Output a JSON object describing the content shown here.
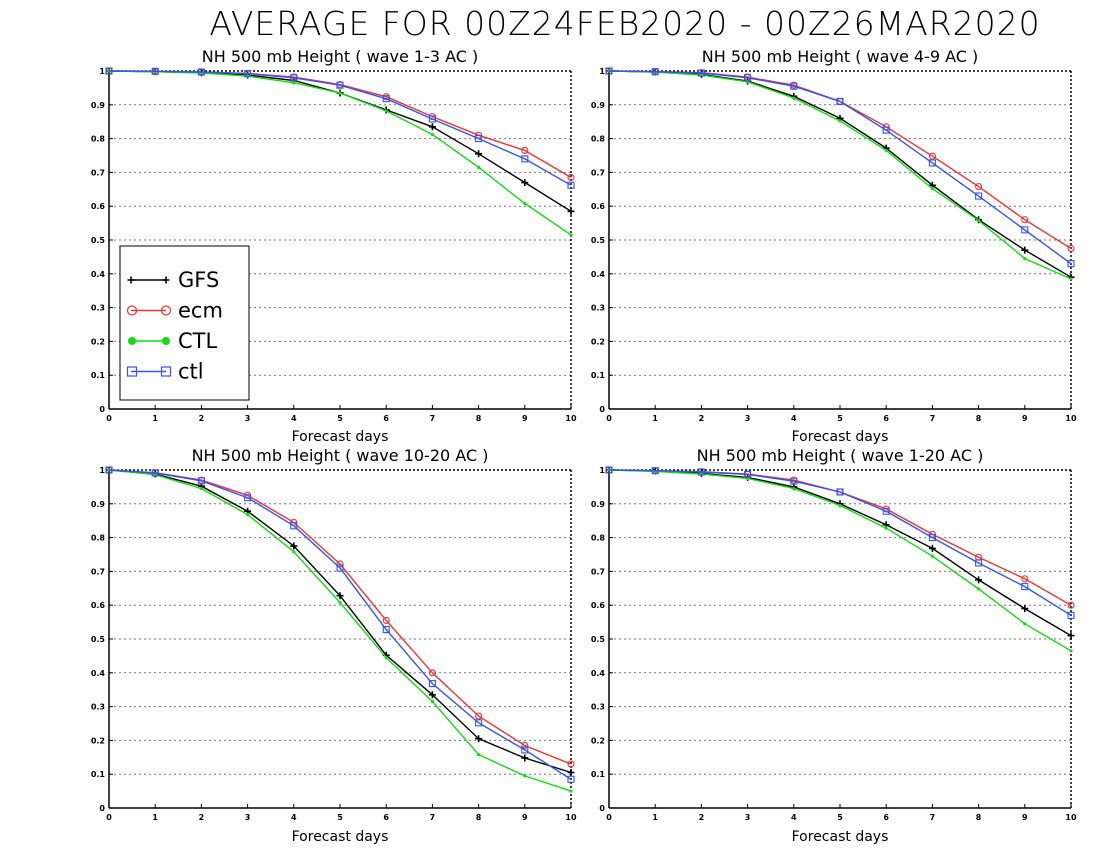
{
  "title": "AVERAGE FOR 00Z24FEB2020 - 00Z26MAR2020",
  "legend": {
    "placement": "left-middle of first panel",
    "entries": [
      {
        "label": "GFS",
        "color": "#000000",
        "marker": "plus"
      },
      {
        "label": "ecm",
        "color": "#ee3333",
        "marker": "circle"
      },
      {
        "label": "CTL",
        "color": "#11dd11",
        "marker": "dot"
      },
      {
        "label": "ctl",
        "color": "#3355ee",
        "marker": "square"
      }
    ]
  },
  "chart_data": [
    {
      "type": "line",
      "title": "NH 500 mb Height ( wave 1-3 AC )",
      "xlabel": "Forecast days",
      "x": [
        0,
        1,
        2,
        3,
        4,
        5,
        6,
        7,
        8,
        9,
        10
      ],
      "xlim": [
        0,
        10
      ],
      "ylim": [
        0,
        1
      ],
      "y_ticks": [
        "0",
        "0.1",
        "0.2",
        "0.3",
        "0.4",
        "0.5",
        "0.6",
        "0.7",
        "0.8",
        "0.9",
        "1"
      ],
      "grid": "horizontal dotted",
      "series": [
        {
          "name": "GFS",
          "color": "#000000",
          "values": [
            1.0,
            0.998,
            0.995,
            0.988,
            0.972,
            0.935,
            0.885,
            0.835,
            0.755,
            0.67,
            0.585
          ]
        },
        {
          "name": "ecm",
          "color": "#ee3333",
          "values": [
            1.0,
            0.999,
            0.997,
            0.993,
            0.982,
            0.96,
            0.924,
            0.865,
            0.81,
            0.765,
            0.685
          ]
        },
        {
          "name": "CTL",
          "color": "#11dd11",
          "values": [
            1.0,
            0.998,
            0.994,
            0.985,
            0.965,
            0.935,
            0.882,
            0.812,
            0.715,
            0.608,
            0.515
          ]
        },
        {
          "name": "ctl",
          "color": "#3355ee",
          "values": [
            1.0,
            0.999,
            0.997,
            0.992,
            0.98,
            0.958,
            0.918,
            0.858,
            0.8,
            0.74,
            0.662
          ]
        }
      ]
    },
    {
      "type": "line",
      "title": "NH 500 mb Height ( wave 4-9 AC )",
      "xlabel": "Forecast days",
      "x": [
        0,
        1,
        2,
        3,
        4,
        5,
        6,
        7,
        8,
        9,
        10
      ],
      "xlim": [
        0,
        10
      ],
      "ylim": [
        0,
        1
      ],
      "y_ticks": [
        "0",
        "0.1",
        "0.2",
        "0.3",
        "0.4",
        "0.5",
        "0.6",
        "0.7",
        "0.8",
        "0.9",
        "1"
      ],
      "grid": "horizontal dotted",
      "series": [
        {
          "name": "GFS",
          "color": "#000000",
          "values": [
            1.0,
            0.997,
            0.99,
            0.97,
            0.925,
            0.86,
            0.772,
            0.662,
            0.56,
            0.47,
            0.39
          ]
        },
        {
          "name": "ecm",
          "color": "#ee3333",
          "values": [
            1.0,
            0.998,
            0.995,
            0.982,
            0.958,
            0.91,
            0.835,
            0.748,
            0.658,
            0.56,
            0.475
          ]
        },
        {
          "name": "CTL",
          "color": "#11dd11",
          "values": [
            1.0,
            0.997,
            0.988,
            0.968,
            0.92,
            0.852,
            0.765,
            0.652,
            0.558,
            0.445,
            0.385
          ]
        },
        {
          "name": "ctl",
          "color": "#3355ee",
          "values": [
            1.0,
            0.998,
            0.994,
            0.98,
            0.955,
            0.91,
            0.825,
            0.728,
            0.63,
            0.53,
            0.43
          ]
        }
      ]
    },
    {
      "type": "line",
      "title": "NH 500 mb Height ( wave 10-20 AC )",
      "xlabel": "Forecast days",
      "x": [
        0,
        1,
        2,
        3,
        4,
        5,
        6,
        7,
        8,
        9,
        10
      ],
      "xlim": [
        0,
        10
      ],
      "ylim": [
        0,
        1
      ],
      "y_ticks": [
        "0",
        "0.1",
        "0.2",
        "0.3",
        "0.4",
        "0.5",
        "0.6",
        "0.7",
        "0.8",
        "0.9",
        "1"
      ],
      "grid": "horizontal dotted",
      "series": [
        {
          "name": "GFS",
          "color": "#000000",
          "values": [
            1.0,
            0.988,
            0.952,
            0.878,
            0.775,
            0.628,
            0.452,
            0.335,
            0.205,
            0.148,
            0.105
          ]
        },
        {
          "name": "ecm",
          "color": "#ee3333",
          "values": [
            1.0,
            0.992,
            0.97,
            0.925,
            0.845,
            0.722,
            0.555,
            0.4,
            0.272,
            0.185,
            0.13
          ]
        },
        {
          "name": "CTL",
          "color": "#11dd11",
          "values": [
            1.0,
            0.986,
            0.945,
            0.868,
            0.758,
            0.608,
            0.445,
            0.315,
            0.158,
            0.095,
            0.05
          ]
        },
        {
          "name": "ctl",
          "color": "#3355ee",
          "values": [
            1.0,
            0.991,
            0.968,
            0.918,
            0.835,
            0.71,
            0.528,
            0.368,
            0.252,
            0.172,
            0.085
          ]
        }
      ]
    },
    {
      "type": "line",
      "title": "NH 500 mb Height ( wave 1-20 AC )",
      "xlabel": "Forecast days",
      "x": [
        0,
        1,
        2,
        3,
        4,
        5,
        6,
        7,
        8,
        9,
        10
      ],
      "xlim": [
        0,
        10
      ],
      "ylim": [
        0,
        1
      ],
      "y_ticks": [
        "0",
        "0.1",
        "0.2",
        "0.3",
        "0.4",
        "0.5",
        "0.6",
        "0.7",
        "0.8",
        "0.9",
        "1"
      ],
      "grid": "horizontal dotted",
      "series": [
        {
          "name": "GFS",
          "color": "#000000",
          "values": [
            1.0,
            0.997,
            0.99,
            0.978,
            0.95,
            0.9,
            0.838,
            0.768,
            0.675,
            0.59,
            0.51
          ]
        },
        {
          "name": "ecm",
          "color": "#ee3333",
          "values": [
            1.0,
            0.998,
            0.995,
            0.988,
            0.97,
            0.935,
            0.885,
            0.81,
            0.742,
            0.678,
            0.6
          ]
        },
        {
          "name": "CTL",
          "color": "#11dd11",
          "values": [
            1.0,
            0.996,
            0.988,
            0.975,
            0.945,
            0.895,
            0.828,
            0.745,
            0.648,
            0.545,
            0.465
          ]
        },
        {
          "name": "ctl",
          "color": "#3355ee",
          "values": [
            1.0,
            0.998,
            0.994,
            0.987,
            0.967,
            0.935,
            0.878,
            0.8,
            0.725,
            0.655,
            0.57
          ]
        }
      ]
    }
  ]
}
